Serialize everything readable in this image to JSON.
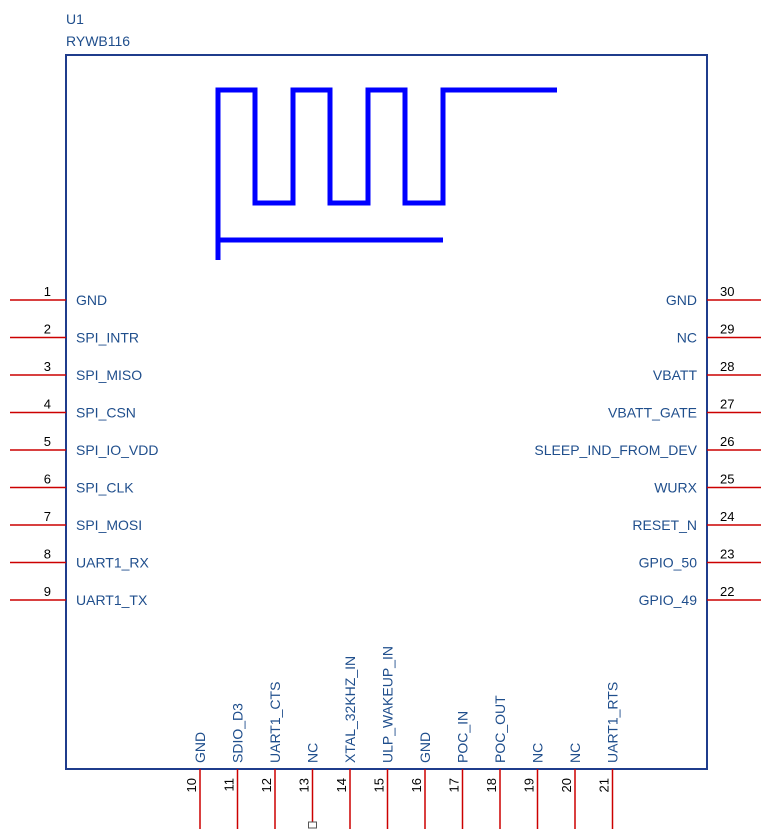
{
  "component": {
    "ref": "U1",
    "part": "RYWB116"
  },
  "colors": {
    "body_outline": "#1f3c8c",
    "label_text": "#1f4e8c",
    "pin_line": "#cc0000",
    "pin_number": "#000000",
    "antenna": "#0000ff"
  },
  "left_pins": [
    {
      "num": "1",
      "name": "GND"
    },
    {
      "num": "2",
      "name": "SPI_INTR"
    },
    {
      "num": "3",
      "name": "SPI_MISO"
    },
    {
      "num": "4",
      "name": "SPI_CSN"
    },
    {
      "num": "5",
      "name": "SPI_IO_VDD"
    },
    {
      "num": "6",
      "name": "SPI_CLK"
    },
    {
      "num": "7",
      "name": "SPI_MOSI"
    },
    {
      "num": "8",
      "name": "UART1_RX"
    },
    {
      "num": "9",
      "name": "UART1_TX"
    }
  ],
  "right_pins": [
    {
      "num": "30",
      "name": "GND"
    },
    {
      "num": "29",
      "name": "NC"
    },
    {
      "num": "28",
      "name": "VBATT"
    },
    {
      "num": "27",
      "name": "VBATT_GATE"
    },
    {
      "num": "26",
      "name": "SLEEP_IND_FROM_DEV"
    },
    {
      "num": "25",
      "name": "WURX"
    },
    {
      "num": "24",
      "name": "RESET_N"
    },
    {
      "num": "23",
      "name": "GPIO_50"
    },
    {
      "num": "22",
      "name": "GPIO_49"
    }
  ],
  "bottom_pins": [
    {
      "num": "10",
      "name": "GND"
    },
    {
      "num": "11",
      "name": "SDIO_D3"
    },
    {
      "num": "12",
      "name": "UART1_CTS"
    },
    {
      "num": "13",
      "name": "NC",
      "unconnected": true
    },
    {
      "num": "14",
      "name": "XTAL_32KHZ_IN"
    },
    {
      "num": "15",
      "name": "ULP_WAKEUP_IN"
    },
    {
      "num": "16",
      "name": "GND"
    },
    {
      "num": "17",
      "name": "POC_IN"
    },
    {
      "num": "18",
      "name": "POC_OUT"
    },
    {
      "num": "19",
      "name": "NC"
    },
    {
      "num": "20",
      "name": "NC"
    },
    {
      "num": "21",
      "name": "UART1_RTS"
    }
  ]
}
